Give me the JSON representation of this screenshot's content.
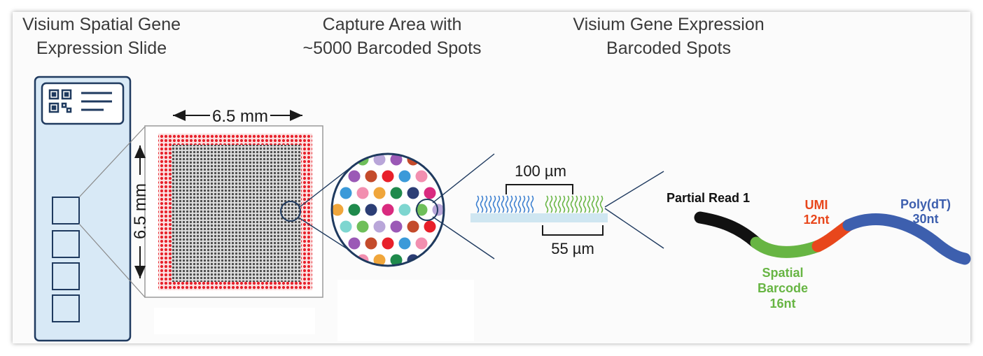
{
  "headings": {
    "slide": [
      "Visium Spatial Gene",
      "Expression Slide"
    ],
    "capture": [
      "Capture Area with",
      "~5000 Barcoded Spots"
    ],
    "spots": [
      "Visium Gene Expression",
      "Barcoded Spots"
    ]
  },
  "dimensions": {
    "width": "6.5 mm",
    "height": "6.5 mm",
    "spot_spacing": "100 µm",
    "spot_diameter": "55 µm"
  },
  "oligo": {
    "read": "Partial Read 1",
    "umi": [
      "UMI",
      "12nt"
    ],
    "polydt": [
      "Poly(dT)",
      "30nt"
    ],
    "barcode": [
      "Spatial",
      "Barcode",
      "16nt"
    ]
  },
  "colors": {
    "slide_fill": "#d8e9f6",
    "slide_border": "#1f3a5f",
    "fiducial_red": "#e8202a",
    "spot_grid": "#555555",
    "read_black": "#111111",
    "barcode_green": "#67b543",
    "umi_red": "#e8471c",
    "polydt_blue": "#3d5fae",
    "substrate": "#cfe6f1",
    "spot_palette": [
      "#d92b7f",
      "#3b9ad9",
      "#6fbf5a",
      "#f0a63b",
      "#9b59b6",
      "#2c3e75",
      "#e8202a",
      "#7ed6d0",
      "#f28fb0",
      "#b9a6d9",
      "#1f8a4c",
      "#c44b2b"
    ]
  }
}
